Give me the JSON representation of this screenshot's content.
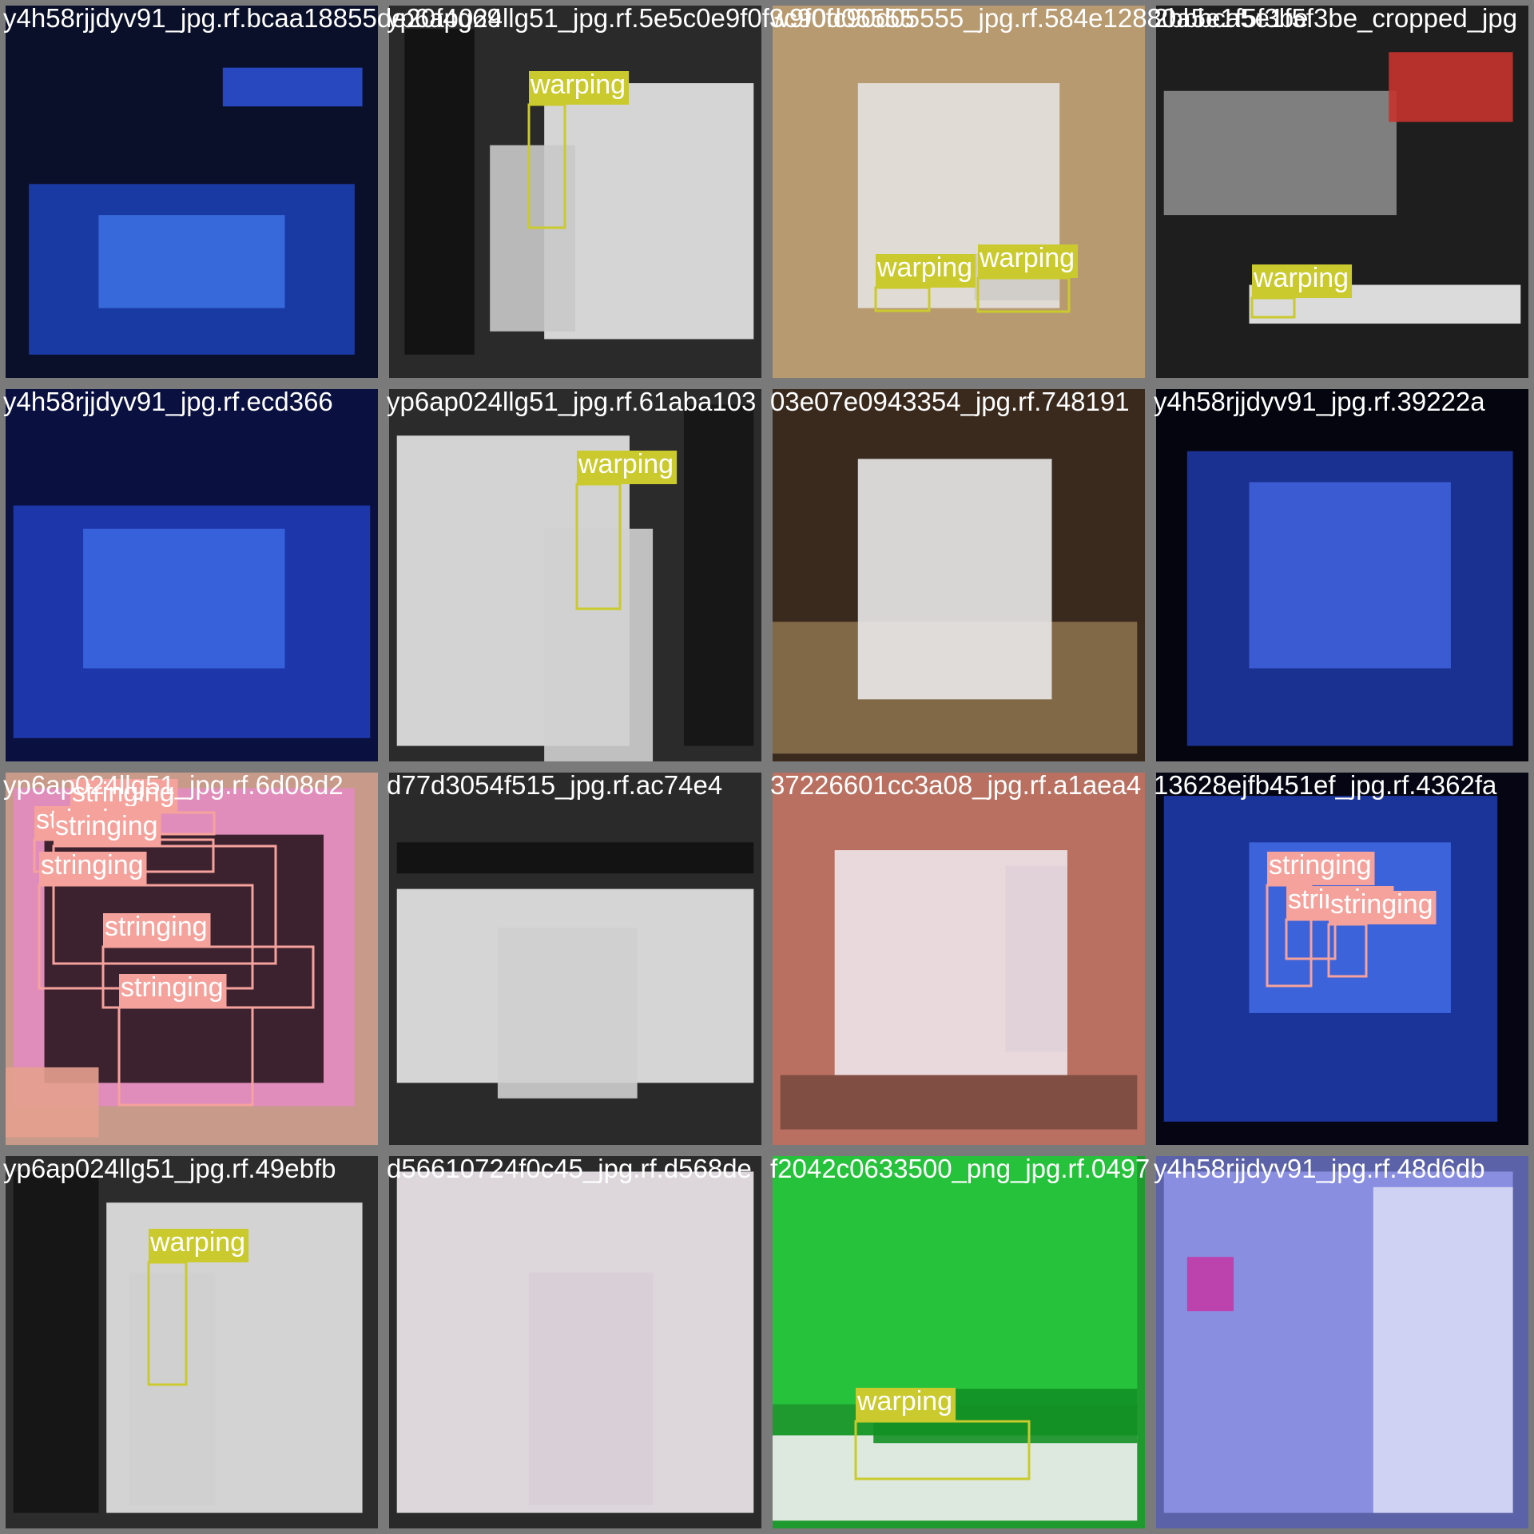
{
  "tiles": [
    {
      "filename": "y4h58rjjdyv91_jpg.rf.bcaa18855de20f4g69",
      "labels": []
    },
    {
      "filename": "yp6ap024llg51_jpg.rf.5e5c0e9f0f3c90d05555",
      "labels": [
        "warping"
      ]
    },
    {
      "filename": "w9f0fc90d05555_jpg.rf.584e12880a5e1f5f3be",
      "labels": [
        "warping",
        "warping"
      ]
    },
    {
      "filename": "2bbbca5e1f5f3be_cropped_jpg",
      "labels": [
        "warping"
      ]
    },
    {
      "filename": "y4h58rjjdyv91_jpg.rf.ecd366",
      "labels": []
    },
    {
      "filename": "yp6ap024llg51_jpg.rf.61aba103",
      "labels": [
        "warping"
      ]
    },
    {
      "filename": "03e07e0943354_jpg.rf.748191",
      "labels": []
    },
    {
      "filename": "y4h58rjjdyv91_jpg.rf.39222a",
      "labels": []
    },
    {
      "filename": "yp6ap024llg51_jpg.rf.6d08d2",
      "labels": [
        "stringing",
        "stringing",
        "stringing",
        "stringing",
        "stringing",
        "stringing"
      ]
    },
    {
      "filename": "d77d3054f515_jpg.rf.ac74e4",
      "labels": []
    },
    {
      "filename": "37226601cc3a08_jpg.rf.a1aea4",
      "labels": []
    },
    {
      "filename": "13628ejfb451ef_jpg.rf.4362fa",
      "labels": [
        "stringing",
        "stringing",
        "stringing"
      ]
    },
    {
      "filename": "yp6ap024llg51_jpg.rf.49ebfb",
      "labels": [
        "warping"
      ]
    },
    {
      "filename": "d56610724f0c45_jpg.rf.d568de",
      "labels": []
    },
    {
      "filename": "f2042c0633500_png_jpg.rf.0497",
      "labels": [
        "warping"
      ]
    },
    {
      "filename": "y4h58rjjdyv91_jpg.rf.48d6db",
      "labels": []
    }
  ]
}
